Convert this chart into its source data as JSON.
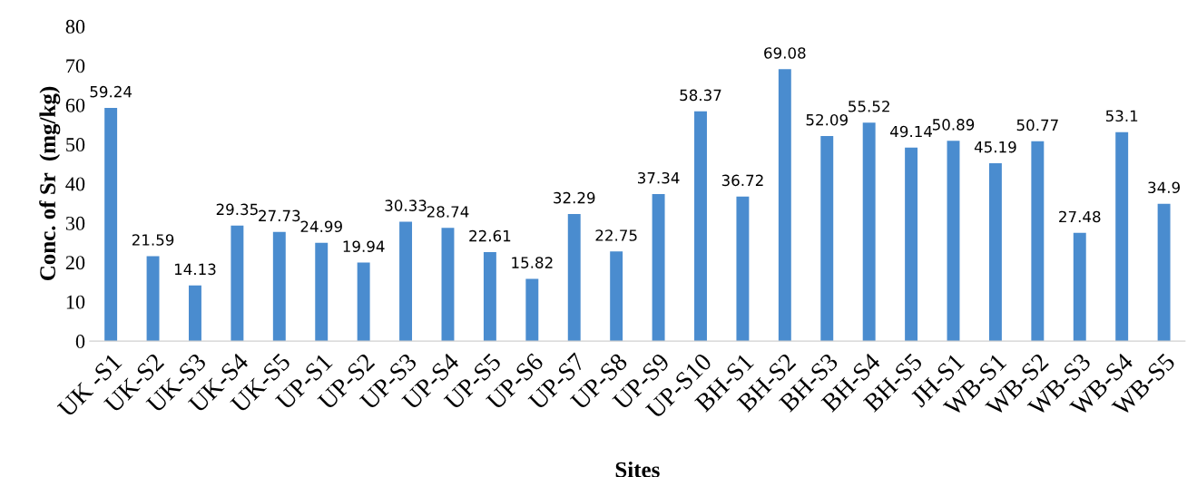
{
  "chart_data": {
    "type": "bar",
    "xlabel": "Sites",
    "ylabel": "Conc. of Sr  (mg/kg)",
    "categories": [
      "UK -S1",
      "UK-S2",
      "UK-S3",
      "UK-S4",
      "UK-S5",
      "UP-S1",
      "UP-S2",
      "UP-S3",
      "UP-S4",
      "UP-S5",
      "UP-S6",
      "UP-S7",
      "UP-S8",
      "UP-S9",
      "UP-S10",
      "BH-S1",
      "BH-S2",
      "BH-S3",
      "BH-S4",
      "BH-S5",
      "JH-S1",
      "WB-S1",
      "WB-S2",
      "WB-S3",
      "WB-S4",
      "WB-S5"
    ],
    "values": [
      59.24,
      21.59,
      14.13,
      29.35,
      27.73,
      24.99,
      19.94,
      30.33,
      28.74,
      22.61,
      15.82,
      32.29,
      22.75,
      37.34,
      58.37,
      36.72,
      69.08,
      52.09,
      55.52,
      49.14,
      50.89,
      45.19,
      50.77,
      27.48,
      53.1,
      34.9
    ],
    "color": "#4a8ccf",
    "data_labels": true,
    "ylim": [
      0,
      80
    ],
    "yticks": [
      0,
      10,
      20,
      30,
      40,
      50,
      60,
      70,
      80
    ],
    "grid": false,
    "legend": false
  }
}
